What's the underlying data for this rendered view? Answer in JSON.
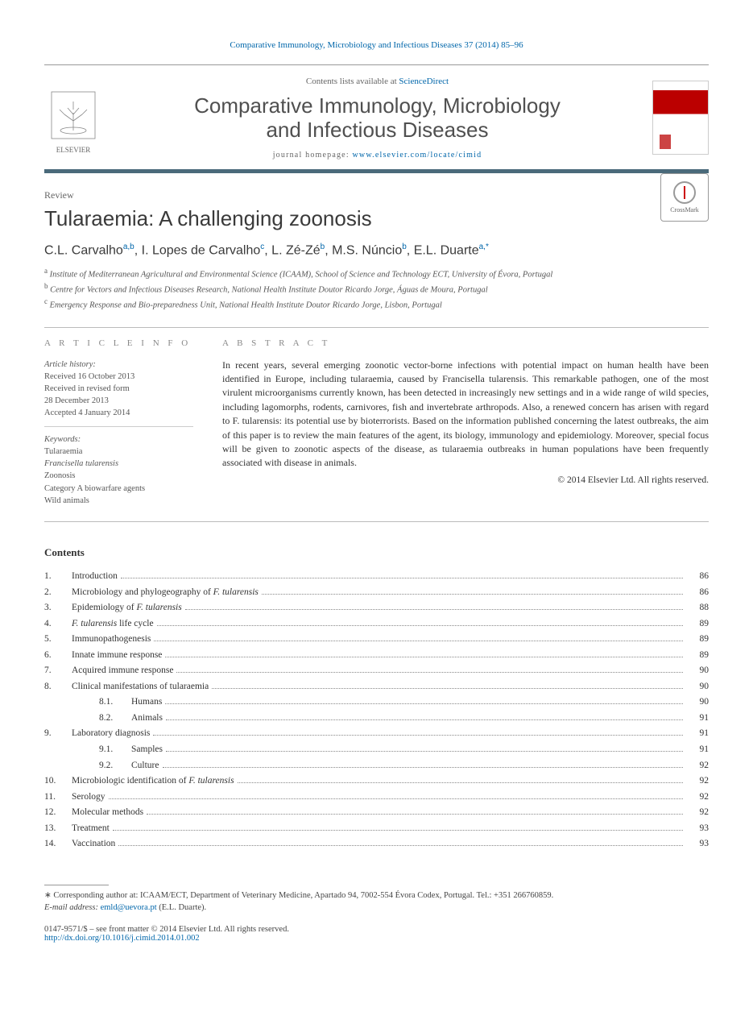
{
  "running_head": "Comparative Immunology, Microbiology and Infectious Diseases 37 (2014) 85–96",
  "contents_available": "Contents lists available at ",
  "sciencedirect": "ScienceDirect",
  "journal_name_l1": "Comparative Immunology, Microbiology",
  "journal_name_l2": "and Infectious Diseases",
  "homepage_prefix": "journal homepage: ",
  "homepage_url": "www.elsevier.com/locate/cimid",
  "elsevier_label": "ELSEVIER",
  "crossmark_label": "CrossMark",
  "review_label": "Review",
  "article_title": "Tularaemia: A challenging zoonosis",
  "authors_html": "C.L. Carvalho|a,b|, I. Lopes de Carvalho|c|, L. Zé-Zé|b|, M.S. Núncio|b|, E.L. Duarte|a,*|",
  "affil_a": "a Institute of Mediterranean Agricultural and Environmental Science (ICAAM), School of Science and Technology ECT, University of Évora, Portugal",
  "affil_b": "b Centre for Vectors and Infectious Diseases Research, National Health Institute Doutor Ricardo Jorge, Águas de Moura, Portugal",
  "affil_c": "c Emergency Response and Bio-preparedness Unit, National Health Institute Doutor Ricardo Jorge, Lisbon, Portugal",
  "info_hdr": "A R T I C L E   I N F O",
  "abstract_hdr": "A B S T R A C T",
  "history_label": "Article history:",
  "history_received": "Received 16 October 2013",
  "history_revised1": "Received in revised form",
  "history_revised2": "28 December 2013",
  "history_accepted": "Accepted 4 January 2014",
  "keywords_label": "Keywords:",
  "keywords": [
    "Tularaemia",
    "Francisella tularensis",
    "Zoonosis",
    "Category A biowarfare agents",
    "Wild animals"
  ],
  "abstract_text": "In recent years, several emerging zoonotic vector-borne infections with potential impact on human health have been identified in Europe, including tularaemia, caused by Francisella tularensis. This remarkable pathogen, one of the most virulent microorganisms currently known, has been detected in increasingly new settings and in a wide range of wild species, including lagomorphs, rodents, carnivores, fish and invertebrate arthropods. Also, a renewed concern has arisen with regard to F. tularensis: its potential use by bioterrorists. Based on the information published concerning the latest outbreaks, the aim of this paper is to review the main features of the agent, its biology, immunology and epidemiology. Moreover, special focus will be given to zoonotic aspects of the disease, as tularaemia outbreaks in human populations have been frequently associated with disease in animals.",
  "abstract_copyright": "© 2014 Elsevier Ltd. All rights reserved.",
  "contents_hdr": "Contents",
  "toc": [
    {
      "n": "1.",
      "t": "Introduction",
      "p": "86"
    },
    {
      "n": "2.",
      "t": "Microbiology and phylogeography of F. tularensis",
      "p": "86"
    },
    {
      "n": "3.",
      "t": "Epidemiology of F. tularensis",
      "p": "88"
    },
    {
      "n": "4.",
      "t": "F. tularensis life cycle",
      "p": "89"
    },
    {
      "n": "5.",
      "t": "Immunopathogenesis",
      "p": "89"
    },
    {
      "n": "6.",
      "t": "Innate immune response",
      "p": "89"
    },
    {
      "n": "7.",
      "t": "Acquired immune response",
      "p": "90"
    },
    {
      "n": "8.",
      "t": "Clinical manifestations of tularaemia",
      "p": "90"
    },
    {
      "n": "",
      "s": "8.1.",
      "t": "Humans",
      "p": "90",
      "indent": true
    },
    {
      "n": "",
      "s": "8.2.",
      "t": "Animals",
      "p": "91",
      "indent": true
    },
    {
      "n": "9.",
      "t": "Laboratory diagnosis",
      "p": "91"
    },
    {
      "n": "",
      "s": "9.1.",
      "t": "Samples",
      "p": "91",
      "indent": true
    },
    {
      "n": "",
      "s": "9.2.",
      "t": "Culture",
      "p": "92",
      "indent": true
    },
    {
      "n": "10.",
      "t": "Microbiologic identification of F. tularensis",
      "p": "92"
    },
    {
      "n": "11.",
      "t": "Serology",
      "p": "92"
    },
    {
      "n": "12.",
      "t": "Molecular methods",
      "p": "92"
    },
    {
      "n": "13.",
      "t": "Treatment",
      "p": "93"
    },
    {
      "n": "14.",
      "t": "Vaccination",
      "p": "93"
    }
  ],
  "corr_author": "∗ Corresponding author at: ICAAM/ECT, Department of Veterinary Medicine, Apartado 94, 7002-554 Évora Codex, Portugal. Tel.: +351 266760859.",
  "corr_email_label": "E-mail address: ",
  "corr_email": "emld@uevora.pt",
  "corr_email_suffix": " (E.L. Duarte).",
  "issn_line": "0147-9571/$ – see front matter © 2014 Elsevier Ltd. All rights reserved.",
  "doi": "http://dx.doi.org/10.1016/j.cimid.2014.01.002",
  "colors": {
    "link": "#0066aa",
    "bar": "#4a6a7a",
    "text": "#333333"
  }
}
